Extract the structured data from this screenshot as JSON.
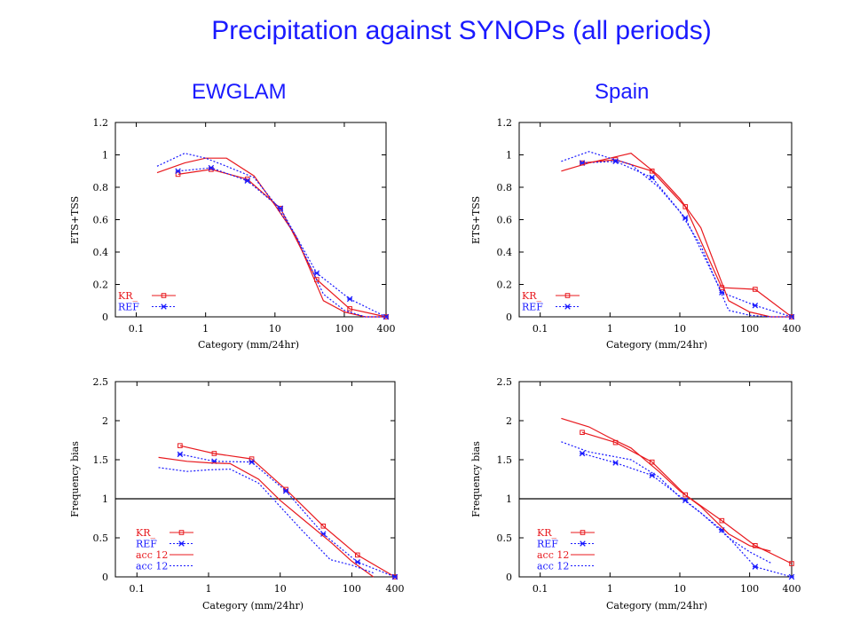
{
  "page": {
    "title": "Precipitation against SYNOPs (all periods)",
    "column_titles": [
      "EWGLAM",
      "Spain"
    ]
  },
  "colors": {
    "kr": "#e8191e",
    "ref": "#1a1aff",
    "title": "#1a1aff",
    "refline": "#000000"
  },
  "chart_data": [
    {
      "id": "ewglam-ets",
      "type": "line",
      "xscale": "log",
      "xlim": [
        0.05,
        400
      ],
      "ylim": [
        0,
        1.2
      ],
      "xticks": [
        {
          "v": 0.1,
          "label": "0.1"
        },
        {
          "v": 1,
          "label": "1"
        },
        {
          "v": 10,
          "label": "10"
        },
        {
          "v": 100,
          "label": "100"
        },
        {
          "v": 400,
          "label": "400"
        }
      ],
      "yticks": [
        {
          "v": 0,
          "label": "0"
        },
        {
          "v": 0.2,
          "label": "0.2"
        },
        {
          "v": 0.4,
          "label": "0.4"
        },
        {
          "v": 0.6,
          "label": "0.6"
        },
        {
          "v": 0.8,
          "label": "0.8"
        },
        {
          "v": 1,
          "label": "1"
        },
        {
          "v": 1.2,
          "label": "1.2"
        }
      ],
      "xlabel": "Category (mm/24hr)",
      "ylabel": "ETS+TSS",
      "legend_position": "bottom-left",
      "series": [
        {
          "name": "KR_",
          "color": "#e8191e",
          "dash": false,
          "marker": "square",
          "x": [
            0.4,
            1.2,
            4,
            12,
            40,
            120,
            400
          ],
          "y": [
            0.88,
            0.91,
            0.85,
            0.67,
            0.23,
            0.05,
            0.0
          ]
        },
        {
          "name": "REF",
          "color": "#1a1aff",
          "dash": true,
          "marker": "star",
          "x": [
            0.4,
            1.2,
            4,
            12,
            40,
            120,
            400
          ],
          "y": [
            0.9,
            0.92,
            0.84,
            0.67,
            0.27,
            0.11,
            0.0
          ]
        },
        {
          "name": "",
          "color": "#e8191e",
          "dash": false,
          "marker": "none",
          "x": [
            0.2,
            0.5,
            1,
            2,
            5,
            10,
            20,
            50,
            100,
            200,
            400
          ],
          "y": [
            0.89,
            0.95,
            0.98,
            0.98,
            0.87,
            0.69,
            0.5,
            0.1,
            0.03,
            0.0,
            0.0
          ]
        },
        {
          "name": "",
          "color": "#1a1aff",
          "dash": true,
          "marker": "none",
          "x": [
            0.2,
            0.5,
            1,
            2,
            5,
            10,
            20,
            50,
            100,
            200,
            400
          ],
          "y": [
            0.93,
            1.01,
            0.98,
            0.93,
            0.86,
            0.7,
            0.5,
            0.14,
            0.04,
            0.0,
            0.0
          ]
        }
      ],
      "legend": [
        {
          "label": "KR_",
          "color": "#e8191e",
          "dash": false,
          "marker": "square"
        },
        {
          "label": "REF",
          "color": "#1a1aff",
          "dash": true,
          "marker": "star"
        }
      ]
    },
    {
      "id": "spain-ets",
      "type": "line",
      "xscale": "log",
      "xlim": [
        0.05,
        400
      ],
      "ylim": [
        0,
        1.2
      ],
      "xticks": [
        {
          "v": 0.1,
          "label": "0.1"
        },
        {
          "v": 1,
          "label": "1"
        },
        {
          "v": 10,
          "label": "10"
        },
        {
          "v": 100,
          "label": "100"
        },
        {
          "v": 400,
          "label": "400"
        }
      ],
      "yticks": [
        {
          "v": 0,
          "label": "0"
        },
        {
          "v": 0.2,
          "label": "0.2"
        },
        {
          "v": 0.4,
          "label": "0.4"
        },
        {
          "v": 0.6,
          "label": "0.6"
        },
        {
          "v": 0.8,
          "label": "0.8"
        },
        {
          "v": 1,
          "label": "1"
        },
        {
          "v": 1.2,
          "label": "1.2"
        }
      ],
      "xlabel": "Category (mm/24hr)",
      "ylabel": "ETS+TSS",
      "legend_position": "bottom-left",
      "series": [
        {
          "name": "KR_",
          "color": "#e8191e",
          "dash": false,
          "marker": "square",
          "x": [
            0.4,
            1.2,
            4,
            12,
            40,
            120,
            400
          ],
          "y": [
            0.95,
            0.97,
            0.9,
            0.68,
            0.18,
            0.17,
            0.0
          ]
        },
        {
          "name": "REF",
          "color": "#1a1aff",
          "dash": true,
          "marker": "star",
          "x": [
            0.4,
            1.2,
            4,
            12,
            40,
            120,
            400
          ],
          "y": [
            0.95,
            0.96,
            0.86,
            0.61,
            0.15,
            0.07,
            0.0
          ]
        },
        {
          "name": "",
          "color": "#e8191e",
          "dash": false,
          "marker": "none",
          "x": [
            0.2,
            0.5,
            1,
            2,
            5,
            10,
            20,
            50,
            100,
            200,
            400
          ],
          "y": [
            0.9,
            0.95,
            0.98,
            1.01,
            0.87,
            0.73,
            0.55,
            0.1,
            0.03,
            0.0,
            0.0
          ]
        },
        {
          "name": "",
          "color": "#1a1aff",
          "dash": true,
          "marker": "none",
          "x": [
            0.2,
            0.5,
            1,
            2,
            5,
            10,
            20,
            50,
            100,
            200,
            400
          ],
          "y": [
            0.96,
            1.02,
            0.98,
            0.94,
            0.8,
            0.65,
            0.44,
            0.04,
            0.01,
            0.0,
            0.0
          ]
        }
      ],
      "legend": [
        {
          "label": "KR_",
          "color": "#e8191e",
          "dash": false,
          "marker": "square"
        },
        {
          "label": "REF",
          "color": "#1a1aff",
          "dash": true,
          "marker": "star"
        }
      ]
    },
    {
      "id": "ewglam-bias",
      "type": "line",
      "xscale": "log",
      "xlim": [
        0.05,
        400
      ],
      "ylim": [
        0,
        2.5
      ],
      "xticks": [
        {
          "v": 0.1,
          "label": "0.1"
        },
        {
          "v": 1,
          "label": "1"
        },
        {
          "v": 10,
          "label": "10"
        },
        {
          "v": 100,
          "label": "100"
        },
        {
          "v": 400,
          "label": "400"
        }
      ],
      "yticks": [
        {
          "v": 0,
          "label": "0"
        },
        {
          "v": 0.5,
          "label": "0.5"
        },
        {
          "v": 1,
          "label": "1"
        },
        {
          "v": 1.5,
          "label": "1.5"
        },
        {
          "v": 2,
          "label": "2"
        },
        {
          "v": 2.5,
          "label": "2.5"
        }
      ],
      "xlabel": "Category (mm/24hr)",
      "ylabel": "Frequency bias",
      "reference_line": 1,
      "legend_position": "bottom-left",
      "series": [
        {
          "name": "KR_",
          "color": "#e8191e",
          "dash": false,
          "marker": "square",
          "x": [
            0.4,
            1.2,
            4,
            12,
            40,
            120,
            400
          ],
          "y": [
            1.68,
            1.58,
            1.51,
            1.12,
            0.65,
            0.28,
            0.0
          ]
        },
        {
          "name": "REF",
          "color": "#1a1aff",
          "dash": true,
          "marker": "star",
          "x": [
            0.4,
            1.2,
            4,
            12,
            40,
            120,
            400
          ],
          "y": [
            1.57,
            1.48,
            1.47,
            1.1,
            0.55,
            0.19,
            0.0
          ]
        },
        {
          "name": "acc 12",
          "color": "#e8191e",
          "dash": false,
          "marker": "none",
          "x": [
            0.2,
            0.5,
            1,
            2,
            5,
            10,
            20,
            50,
            100,
            200
          ],
          "y": [
            1.53,
            1.48,
            1.46,
            1.45,
            1.25,
            0.98,
            0.75,
            0.45,
            0.2,
            0.0
          ]
        },
        {
          "name": "acc 12",
          "color": "#1a1aff",
          "dash": true,
          "marker": "none",
          "x": [
            0.2,
            0.5,
            1,
            2,
            5,
            10,
            20,
            50,
            100,
            200
          ],
          "y": [
            1.4,
            1.35,
            1.37,
            1.38,
            1.2,
            0.9,
            0.6,
            0.22,
            0.15,
            0.05
          ]
        }
      ],
      "legend": [
        {
          "label": "KR_",
          "color": "#e8191e",
          "dash": false,
          "marker": "square"
        },
        {
          "label": "REF",
          "color": "#1a1aff",
          "dash": true,
          "marker": "star"
        },
        {
          "label": "acc 12",
          "color": "#e8191e",
          "dash": false,
          "marker": "none"
        },
        {
          "label": "acc 12",
          "color": "#1a1aff",
          "dash": true,
          "marker": "none"
        }
      ]
    },
    {
      "id": "spain-bias",
      "type": "line",
      "xscale": "log",
      "xlim": [
        0.05,
        400
      ],
      "ylim": [
        0,
        2.5
      ],
      "xticks": [
        {
          "v": 0.1,
          "label": "0.1"
        },
        {
          "v": 1,
          "label": "1"
        },
        {
          "v": 10,
          "label": "10"
        },
        {
          "v": 100,
          "label": "100"
        },
        {
          "v": 400,
          "label": "400"
        }
      ],
      "yticks": [
        {
          "v": 0,
          "label": "0"
        },
        {
          "v": 0.5,
          "label": "0.5"
        },
        {
          "v": 1,
          "label": "1"
        },
        {
          "v": 1.5,
          "label": "1.5"
        },
        {
          "v": 2,
          "label": "2"
        },
        {
          "v": 2.5,
          "label": "2.5"
        }
      ],
      "xlabel": "Category (mm/24hr)",
      "ylabel": "Frequency bias",
      "reference_line": 1,
      "legend_position": "bottom-left",
      "series": [
        {
          "name": "KR_",
          "color": "#e8191e",
          "dash": false,
          "marker": "square",
          "x": [
            0.4,
            1.2,
            4,
            12,
            40,
            120,
            400
          ],
          "y": [
            1.85,
            1.72,
            1.47,
            1.05,
            0.72,
            0.4,
            0.17
          ]
        },
        {
          "name": "REF",
          "color": "#1a1aff",
          "dash": true,
          "marker": "star",
          "x": [
            0.4,
            1.2,
            4,
            12,
            40,
            120,
            400
          ],
          "y": [
            1.58,
            1.46,
            1.3,
            0.98,
            0.6,
            0.13,
            0.0
          ]
        },
        {
          "name": "acc 12",
          "color": "#e8191e",
          "dash": false,
          "marker": "none",
          "x": [
            0.2,
            0.5,
            1,
            2,
            5,
            10,
            20,
            50,
            100,
            200
          ],
          "y": [
            2.03,
            1.92,
            1.78,
            1.65,
            1.35,
            1.1,
            0.9,
            0.55,
            0.4,
            0.33
          ]
        },
        {
          "name": "acc 12",
          "color": "#1a1aff",
          "dash": true,
          "marker": "none",
          "x": [
            0.2,
            0.5,
            1,
            2,
            5,
            10,
            20,
            50,
            100,
            200
          ],
          "y": [
            1.73,
            1.6,
            1.55,
            1.5,
            1.28,
            1.02,
            0.82,
            0.5,
            0.32,
            0.18
          ]
        }
      ],
      "legend": [
        {
          "label": "KR_",
          "color": "#e8191e",
          "dash": false,
          "marker": "square"
        },
        {
          "label": "REF",
          "color": "#1a1aff",
          "dash": true,
          "marker": "star"
        },
        {
          "label": "acc 12",
          "color": "#e8191e",
          "dash": false,
          "marker": "none"
        },
        {
          "label": "acc 12",
          "color": "#1a1aff",
          "dash": true,
          "marker": "none"
        }
      ]
    }
  ]
}
